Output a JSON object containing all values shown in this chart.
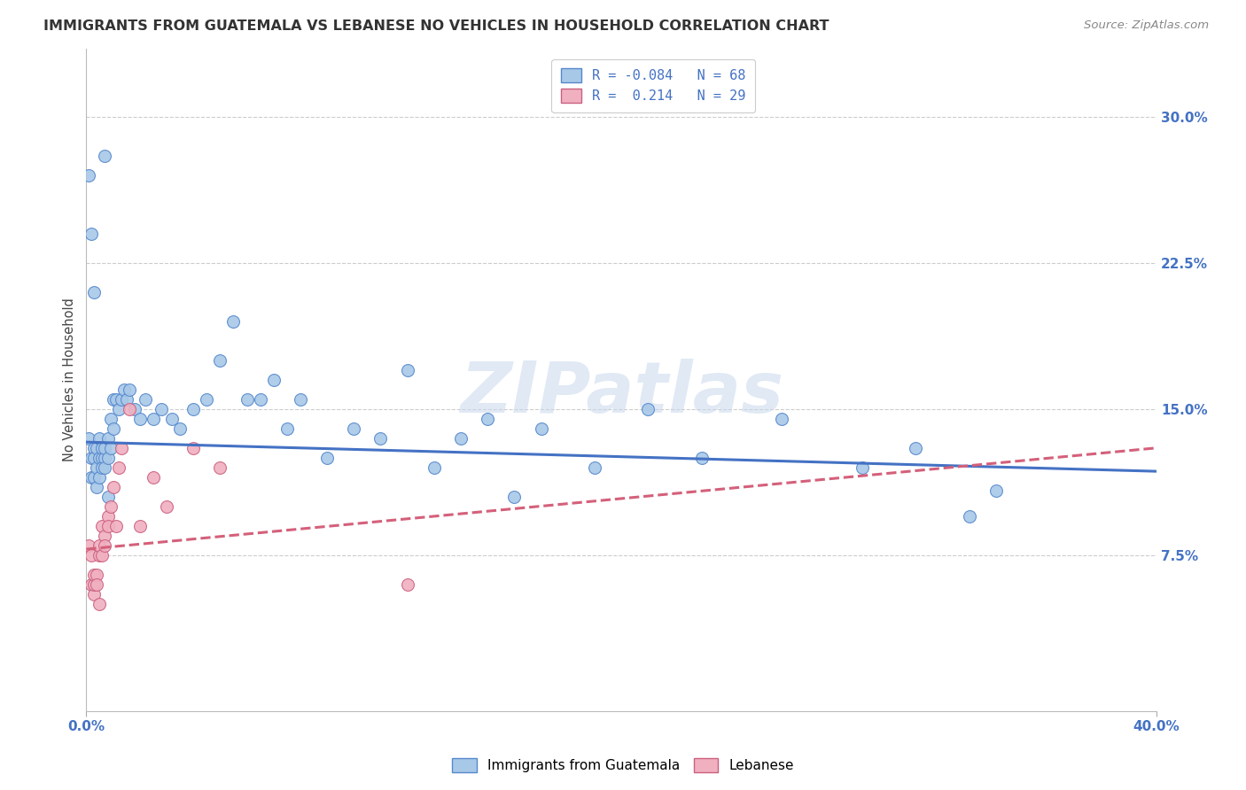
{
  "title": "IMMIGRANTS FROM GUATEMALA VS LEBANESE NO VEHICLES IN HOUSEHOLD CORRELATION CHART",
  "source": "Source: ZipAtlas.com",
  "ylabel": "No Vehicles in Household",
  "xlim": [
    0.0,
    0.4
  ],
  "ylim": [
    -0.005,
    0.335
  ],
  "plot_ylim": [
    0.0,
    0.32
  ],
  "xtick_vals": [
    0.0,
    0.4
  ],
  "xtick_labels": [
    "0.0%",
    "40.0%"
  ],
  "ytick_values": [
    0.075,
    0.15,
    0.225,
    0.3
  ],
  "ytick_labels": [
    "7.5%",
    "15.0%",
    "22.5%",
    "30.0%"
  ],
  "color_blue": "#A8C8E8",
  "color_pink": "#F0B0C0",
  "edge_blue": "#5588CC",
  "edge_pink": "#CC6080",
  "line_blue": "#4472C4",
  "line_pink": "#D4607A",
  "background": "#FFFFFF",
  "grid_color": "#CCCCCC",
  "watermark": "ZIPatlas",
  "blue_x": [
    0.001,
    0.002,
    0.002,
    0.003,
    0.003,
    0.003,
    0.004,
    0.004,
    0.004,
    0.005,
    0.005,
    0.005,
    0.006,
    0.006,
    0.006,
    0.007,
    0.007,
    0.007,
    0.008,
    0.008,
    0.009,
    0.009,
    0.01,
    0.01,
    0.011,
    0.012,
    0.013,
    0.014,
    0.015,
    0.016,
    0.018,
    0.02,
    0.022,
    0.025,
    0.028,
    0.032,
    0.035,
    0.04,
    0.045,
    0.05,
    0.055,
    0.06,
    0.065,
    0.07,
    0.075,
    0.08,
    0.09,
    0.1,
    0.11,
    0.12,
    0.13,
    0.14,
    0.15,
    0.16,
    0.17,
    0.19,
    0.21,
    0.23,
    0.26,
    0.29,
    0.31,
    0.33,
    0.001,
    0.002,
    0.003,
    0.007,
    0.008,
    0.34
  ],
  "blue_y": [
    0.135,
    0.125,
    0.115,
    0.13,
    0.115,
    0.125,
    0.12,
    0.13,
    0.11,
    0.125,
    0.115,
    0.135,
    0.125,
    0.12,
    0.13,
    0.125,
    0.13,
    0.12,
    0.135,
    0.125,
    0.145,
    0.13,
    0.155,
    0.14,
    0.155,
    0.15,
    0.155,
    0.16,
    0.155,
    0.16,
    0.15,
    0.145,
    0.155,
    0.145,
    0.15,
    0.145,
    0.14,
    0.15,
    0.155,
    0.175,
    0.195,
    0.155,
    0.155,
    0.165,
    0.14,
    0.155,
    0.125,
    0.14,
    0.135,
    0.17,
    0.12,
    0.135,
    0.145,
    0.105,
    0.14,
    0.12,
    0.15,
    0.125,
    0.145,
    0.12,
    0.13,
    0.095,
    0.27,
    0.24,
    0.21,
    0.28,
    0.105,
    0.108
  ],
  "pink_x": [
    0.001,
    0.002,
    0.002,
    0.003,
    0.003,
    0.003,
    0.004,
    0.004,
    0.005,
    0.005,
    0.005,
    0.006,
    0.006,
    0.007,
    0.007,
    0.008,
    0.008,
    0.009,
    0.01,
    0.011,
    0.012,
    0.013,
    0.016,
    0.02,
    0.025,
    0.03,
    0.04,
    0.05,
    0.12
  ],
  "pink_y": [
    0.08,
    0.075,
    0.06,
    0.055,
    0.06,
    0.065,
    0.065,
    0.06,
    0.075,
    0.08,
    0.05,
    0.09,
    0.075,
    0.085,
    0.08,
    0.095,
    0.09,
    0.1,
    0.11,
    0.09,
    0.12,
    0.13,
    0.15,
    0.09,
    0.115,
    0.1,
    0.13,
    0.12,
    0.06
  ],
  "blue_line_x": [
    0.0,
    0.4
  ],
  "blue_line_y": [
    0.133,
    0.118
  ],
  "pink_line_x": [
    0.0,
    0.4
  ],
  "pink_line_y": [
    0.078,
    0.13
  ]
}
